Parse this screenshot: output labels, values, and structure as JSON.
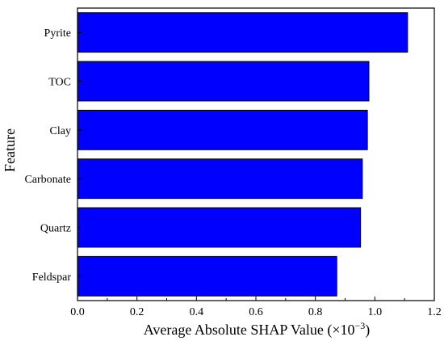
{
  "chart_data": {
    "type": "bar",
    "orientation": "horizontal",
    "title": "",
    "xlabel": "Average Absolute SHAP Value (×10",
    "xlabel_exponent": "−3",
    "xlabel_suffix": ")",
    "ylabel": "Feature",
    "xlim": [
      0.0,
      1.2
    ],
    "xticks": [
      0.0,
      0.2,
      0.4,
      0.6,
      0.8,
      1.0,
      1.2
    ],
    "xtick_labels": [
      "0.0",
      "0.2",
      "0.4",
      "0.6",
      "0.8",
      "1.0",
      "1.2"
    ],
    "categories": [
      "Pyrite",
      "TOC",
      "Clay",
      "Carbonate",
      "Quartz",
      "Feldspar"
    ],
    "values": [
      1.11,
      0.98,
      0.975,
      0.958,
      0.952,
      0.872
    ],
    "bar_color": "#0000ff",
    "bar_edge_color": "#000000",
    "grid": false,
    "legend": "none"
  }
}
